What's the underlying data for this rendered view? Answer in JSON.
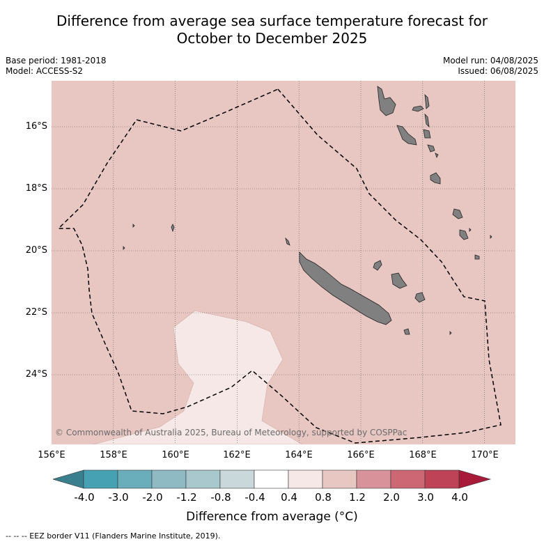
{
  "title_line1": "Difference from average sea surface temperature forecast for",
  "title_line2": "October to December 2025",
  "meta_left": {
    "base_period": "Base period: 1981-2018",
    "model": "Model: ACCESS-S2"
  },
  "meta_right": {
    "model_run": "Model run: 04/08/2025",
    "issued": "Issued: 06/08/2025"
  },
  "copyright": "© Commonwealth of Australia 2025, Bureau of Meteorology, supported by COSPPac",
  "map": {
    "lon_range": [
      156,
      171
    ],
    "lat_range": [
      -26.2,
      -14.7
    ],
    "x_ticks": [
      "156°E",
      "158°E",
      "160°E",
      "162°E",
      "164°E",
      "166°E",
      "168°E",
      "170°E"
    ],
    "y_ticks": [
      "16°S",
      "18°S",
      "20°S",
      "22°S",
      "24°S"
    ],
    "background_color": "#e8c7c2",
    "low_anomaly_color": "#f5e8e6",
    "land_color": "#808080",
    "grid": true
  },
  "colorbar": {
    "ticks": [
      "-4.0",
      "-3.0",
      "-2.0",
      "-1.2",
      "-0.8",
      "-0.4",
      "0.4",
      "0.8",
      "1.2",
      "2.0",
      "3.0",
      "4.0"
    ],
    "colors": [
      "#3a7f8e",
      "#46a1b2",
      "#6aadbb",
      "#8fbac4",
      "#a9c8cd",
      "#c9d8db",
      "#ffffff",
      "#f5e8e6",
      "#e8c7c2",
      "#d8939a",
      "#cd6774",
      "#bf4356",
      "#a81a3a"
    ],
    "label": "Difference from average (°C)"
  },
  "footnote": "-- -- -- EEZ border V11 (Flanders Marine Institute, 2019)."
}
